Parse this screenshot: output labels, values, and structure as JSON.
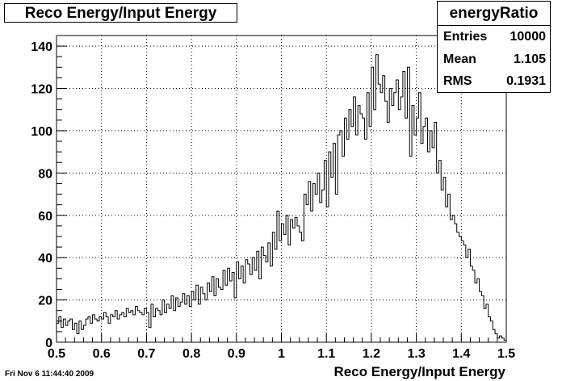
{
  "header": {
    "title": "Reco Energy/Input Energy"
  },
  "stats": {
    "title": "energyRatio",
    "rows": [
      {
        "label": "Entries",
        "value": "10000"
      },
      {
        "label": "Mean",
        "value": "1.105"
      },
      {
        "label": "RMS",
        "value": "0.1931"
      }
    ]
  },
  "footer": {
    "date_stamp": "Fri Nov  6 11:44:40 2009"
  },
  "chart_data": {
    "type": "bar",
    "title": "Reco Energy/Input Energy",
    "xlabel": "Reco Energy/Input Energy",
    "ylabel": "",
    "xlim": [
      0.5,
      1.5
    ],
    "ylim": [
      0,
      145
    ],
    "xticks": [
      0.5,
      0.6,
      0.7,
      0.8,
      0.9,
      1,
      1.1,
      1.2,
      1.3,
      1.4,
      1.5
    ],
    "xtick_labels": [
      "0.5",
      "0.6",
      "0.7",
      "0.8",
      "0.9",
      "1",
      "1.1",
      "1.2",
      "1.3",
      "1.4",
      "1.5"
    ],
    "yticks": [
      0,
      20,
      40,
      60,
      80,
      100,
      120,
      140
    ],
    "ytick_labels": [
      "0",
      "20",
      "40",
      "60",
      "80",
      "100",
      "120",
      "140"
    ],
    "grid": true,
    "bin_width": 0.005,
    "x_start": 0.5,
    "values": [
      9,
      12,
      7,
      11,
      8,
      10,
      11,
      6,
      9,
      4,
      10,
      6,
      8,
      11,
      12,
      9,
      13,
      11,
      10,
      12,
      11,
      14,
      12,
      9,
      13,
      12,
      15,
      11,
      13,
      14,
      12,
      16,
      14,
      15,
      13,
      17,
      15,
      14,
      13,
      16,
      14,
      7,
      18,
      12,
      16,
      15,
      13,
      20,
      14,
      18,
      16,
      22,
      15,
      21,
      17,
      19,
      23,
      18,
      22,
      17,
      24,
      20,
      27,
      18,
      26,
      23,
      20,
      28,
      24,
      31,
      22,
      30,
      26,
      25,
      34,
      27,
      35,
      29,
      33,
      21,
      38,
      30,
      36,
      28,
      39,
      37,
      32,
      40,
      34,
      43,
      30,
      45,
      41,
      38,
      47,
      36,
      52,
      44,
      62,
      48,
      56,
      51,
      60,
      46,
      58,
      54,
      59,
      55,
      52,
      48,
      70,
      65,
      76,
      62,
      75,
      70,
      80,
      66,
      72,
      86,
      64,
      90,
      78,
      94,
      70,
      98,
      100,
      88,
      106,
      96,
      110,
      102,
      116,
      98,
      112,
      108,
      106,
      96,
      118,
      102,
      130,
      110,
      136,
      122,
      118,
      126,
      114,
      104,
      120,
      112,
      118,
      124,
      110,
      116,
      128,
      106,
      130,
      88,
      112,
      98,
      106,
      118,
      94,
      102,
      106,
      90,
      100,
      92,
      104,
      80,
      86,
      72,
      78,
      64,
      70,
      58,
      60,
      56,
      52,
      50,
      48,
      46,
      40,
      44,
      36,
      34,
      28,
      30,
      24,
      22,
      16,
      18,
      12,
      10,
      6,
      4,
      2,
      3,
      2,
      1
    ]
  }
}
